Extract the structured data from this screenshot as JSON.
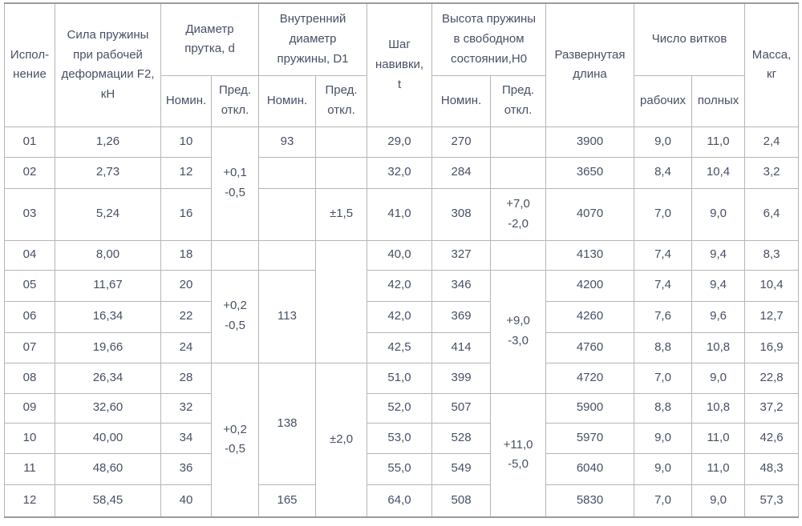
{
  "colors": {
    "text": "#475064",
    "border": "#b6b6b6",
    "outer_border": "#9b9b9b",
    "background": "#ffffff"
  },
  "table": {
    "header": {
      "execution": "Испол-\nнение",
      "force": "Сила пружины\nпри рабочей\nдеформации F2,\nкН",
      "rod_diameter": "Диаметр\nпрутка, d",
      "inner_diameter": "Внутренний\nдиаметр\nпружины, D1",
      "coil_pitch": "Шаг\nнавивки,\nt",
      "free_height": "Высота пружины\nв свободном\nсостоянии,H0",
      "developed_length": "Развернутая\nдлина",
      "coil_count": "Число витков",
      "mass": "Масса,\nкг",
      "nominal": "Номин.",
      "deviation": "Пред.\nоткл.",
      "working": "рабочих",
      "full": "полных"
    },
    "rows": [
      {
        "cells": [
          "01",
          "1,26",
          "10",
          {
            "v": "+0,1\n-0,5",
            "rowspan": 3
          },
          "93",
          "",
          "29,0",
          "270",
          "",
          "3900",
          "9,0",
          "11,0",
          "2,4"
        ]
      },
      {
        "cells": [
          "02",
          "2,73",
          "12",
          "",
          "",
          "32,0",
          "284",
          "",
          "3650",
          "8,4",
          "10,4",
          "3,2"
        ]
      },
      {
        "cells": [
          "03",
          "5,24",
          "16",
          "",
          "±1,5",
          "41,0",
          "308",
          "+7,0\n-2,0",
          "4070",
          "7,0",
          "9,0",
          "6,4"
        ]
      },
      {
        "cells": [
          "04",
          "8,00",
          "18",
          "",
          "",
          {
            "v": "",
            "rowspan": 4
          },
          "40,0",
          "327",
          "",
          "4130",
          "7,4",
          "9,4",
          "8,3"
        ]
      },
      {
        "cells": [
          "05",
          "11,67",
          "20",
          {
            "v": "+0,2\n-0,5",
            "rowspan": 3
          },
          {
            "v": "113",
            "rowspan": 3
          },
          "42,0",
          "346",
          {
            "v": "+9,0\n-3,0",
            "rowspan": 4
          },
          "4200",
          "7,4",
          "9,4",
          "10,4"
        ]
      },
      {
        "cells": [
          "06",
          "16,34",
          "22",
          "42,0",
          "369",
          "4260",
          "7,6",
          "9,6",
          "12,7"
        ]
      },
      {
        "cells": [
          "07",
          "19,66",
          "24",
          "42,5",
          "414",
          "4760",
          "8,8",
          "10,8",
          "16,9"
        ]
      },
      {
        "cells": [
          "08",
          "26,34",
          "28",
          {
            "v": "+0,2\n-0,5",
            "rowspan": 5
          },
          {
            "v": "138",
            "rowspan": 4
          },
          {
            "v": "±2,0",
            "rowspan": 5
          },
          "51,0",
          "399",
          "4720",
          "7,0",
          "9,0",
          "22,8"
        ]
      },
      {
        "cells": [
          "09",
          "32,60",
          "32",
          "52,0",
          "507",
          {
            "v": "+11,0\n-5,0",
            "rowspan": 4
          },
          "5900",
          "8,8",
          "10,8",
          "37,2"
        ]
      },
      {
        "cells": [
          "10",
          "40,00",
          "34",
          "53,0",
          "528",
          "5970",
          "9,0",
          "11,0",
          "42,6"
        ]
      },
      {
        "cells": [
          "11",
          "48,60",
          "36",
          "55,0",
          "549",
          "6040",
          "9,0",
          "11,0",
          "48,3"
        ]
      },
      {
        "cells": [
          "12",
          "58,45",
          "40",
          "165",
          "64,0",
          "508",
          "5830",
          "7,0",
          "9,0",
          "57,3"
        ]
      }
    ]
  }
}
